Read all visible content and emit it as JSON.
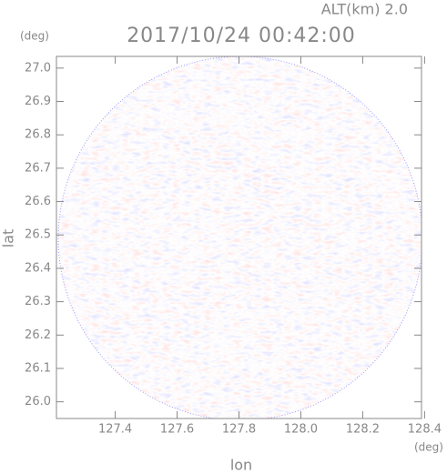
{
  "chart_data": {
    "type": "ppi",
    "title": "2017/10/24 00:42:00",
    "subtitle": "ALT(km)  2.0",
    "x_label": "lon",
    "y_label": "lat",
    "x_unit": "(deg)",
    "y_unit": "(deg)",
    "xlim": [
      127.21,
      128.39
    ],
    "ylim": [
      25.95,
      27.035
    ],
    "xticks": [
      127.4,
      127.6,
      127.8,
      {
        "value": 128,
        "label": "128.0"
      },
      128.2,
      128.4
    ],
    "yticks": [
      {
        "value": 26,
        "label": "26.0"
      },
      26.1,
      26.2,
      26.3,
      26.4,
      26.5,
      26.6,
      26.7,
      26.8,
      26.9,
      {
        "value": 27,
        "label": "27.0"
      }
    ]
  }
}
